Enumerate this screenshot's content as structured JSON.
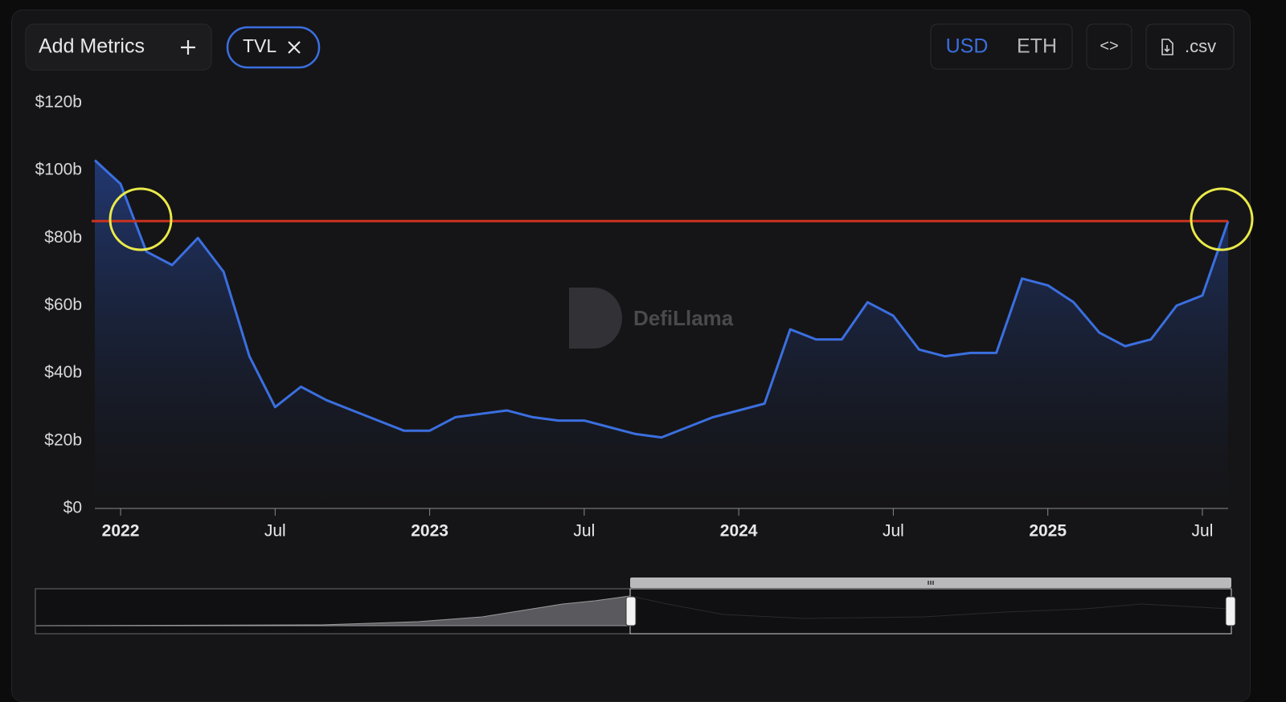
{
  "controls": {
    "add_metrics": "Add Metrics",
    "currencies": [
      "USD",
      "ETH"
    ],
    "embed": "<>",
    "csv": ".csv"
  },
  "watermark": "DefiLlama",
  "chart_data": {
    "type": "line",
    "x": [
      "2021-12",
      "2022-01",
      "2022-02",
      "2022-03",
      "2022-04",
      "2022-05",
      "2022-06",
      "2022-07",
      "2022-08",
      "2022-09",
      "2022-10",
      "2022-11",
      "2022-12",
      "2023-01",
      "2023-02",
      "2023-03",
      "2023-04",
      "2023-05",
      "2023-06",
      "2023-07",
      "2023-08",
      "2023-09",
      "2023-10",
      "2023-11",
      "2023-12",
      "2024-01",
      "2024-02",
      "2024-03",
      "2024-04",
      "2024-05",
      "2024-06",
      "2024-07",
      "2024-08",
      "2024-09",
      "2024-10",
      "2024-11",
      "2024-12",
      "2025-01",
      "2025-02",
      "2025-03",
      "2025-04",
      "2025-05",
      "2025-06",
      "2025-07",
      "2025-08"
    ],
    "series": [
      {
        "name": "TVL",
        "color": "#3b6fe0",
        "values": [
          103,
          96,
          76,
          72,
          80,
          70,
          45,
          30,
          36,
          32,
          29,
          26,
          23,
          23,
          27,
          28,
          29,
          27,
          26,
          26,
          24,
          22,
          21,
          24,
          27,
          29,
          31,
          53,
          50,
          50,
          61,
          57,
          47,
          45,
          46,
          46,
          68,
          66,
          61,
          52,
          48,
          50,
          60,
          63,
          85
        ]
      }
    ],
    "reference_line": {
      "value": 85,
      "color": "#c8321e"
    },
    "xlim": [
      "2021-12",
      "2025-08"
    ],
    "xticks": [
      {
        "value": "2022-01",
        "label": "2022"
      },
      {
        "value": "2022-07",
        "label": "Jul"
      },
      {
        "value": "2023-01",
        "label": "2023"
      },
      {
        "value": "2023-07",
        "label": "Jul"
      },
      {
        "value": "2024-01",
        "label": "2024"
      },
      {
        "value": "2024-07",
        "label": "Jul"
      },
      {
        "value": "2025-01",
        "label": "2025"
      },
      {
        "value": "2025-07",
        "label": "Jul"
      }
    ],
    "ylim": [
      0,
      120
    ],
    "yticks": [
      {
        "value": 0,
        "label": "$0"
      },
      {
        "value": 20,
        "label": "$20b"
      },
      {
        "value": 40,
        "label": "$40b"
      },
      {
        "value": 60,
        "label": "$60b"
      },
      {
        "value": 80,
        "label": "$80b"
      },
      {
        "value": 100,
        "label": "$100b"
      },
      {
        "value": 120,
        "label": "$120b"
      }
    ],
    "grid": false
  }
}
